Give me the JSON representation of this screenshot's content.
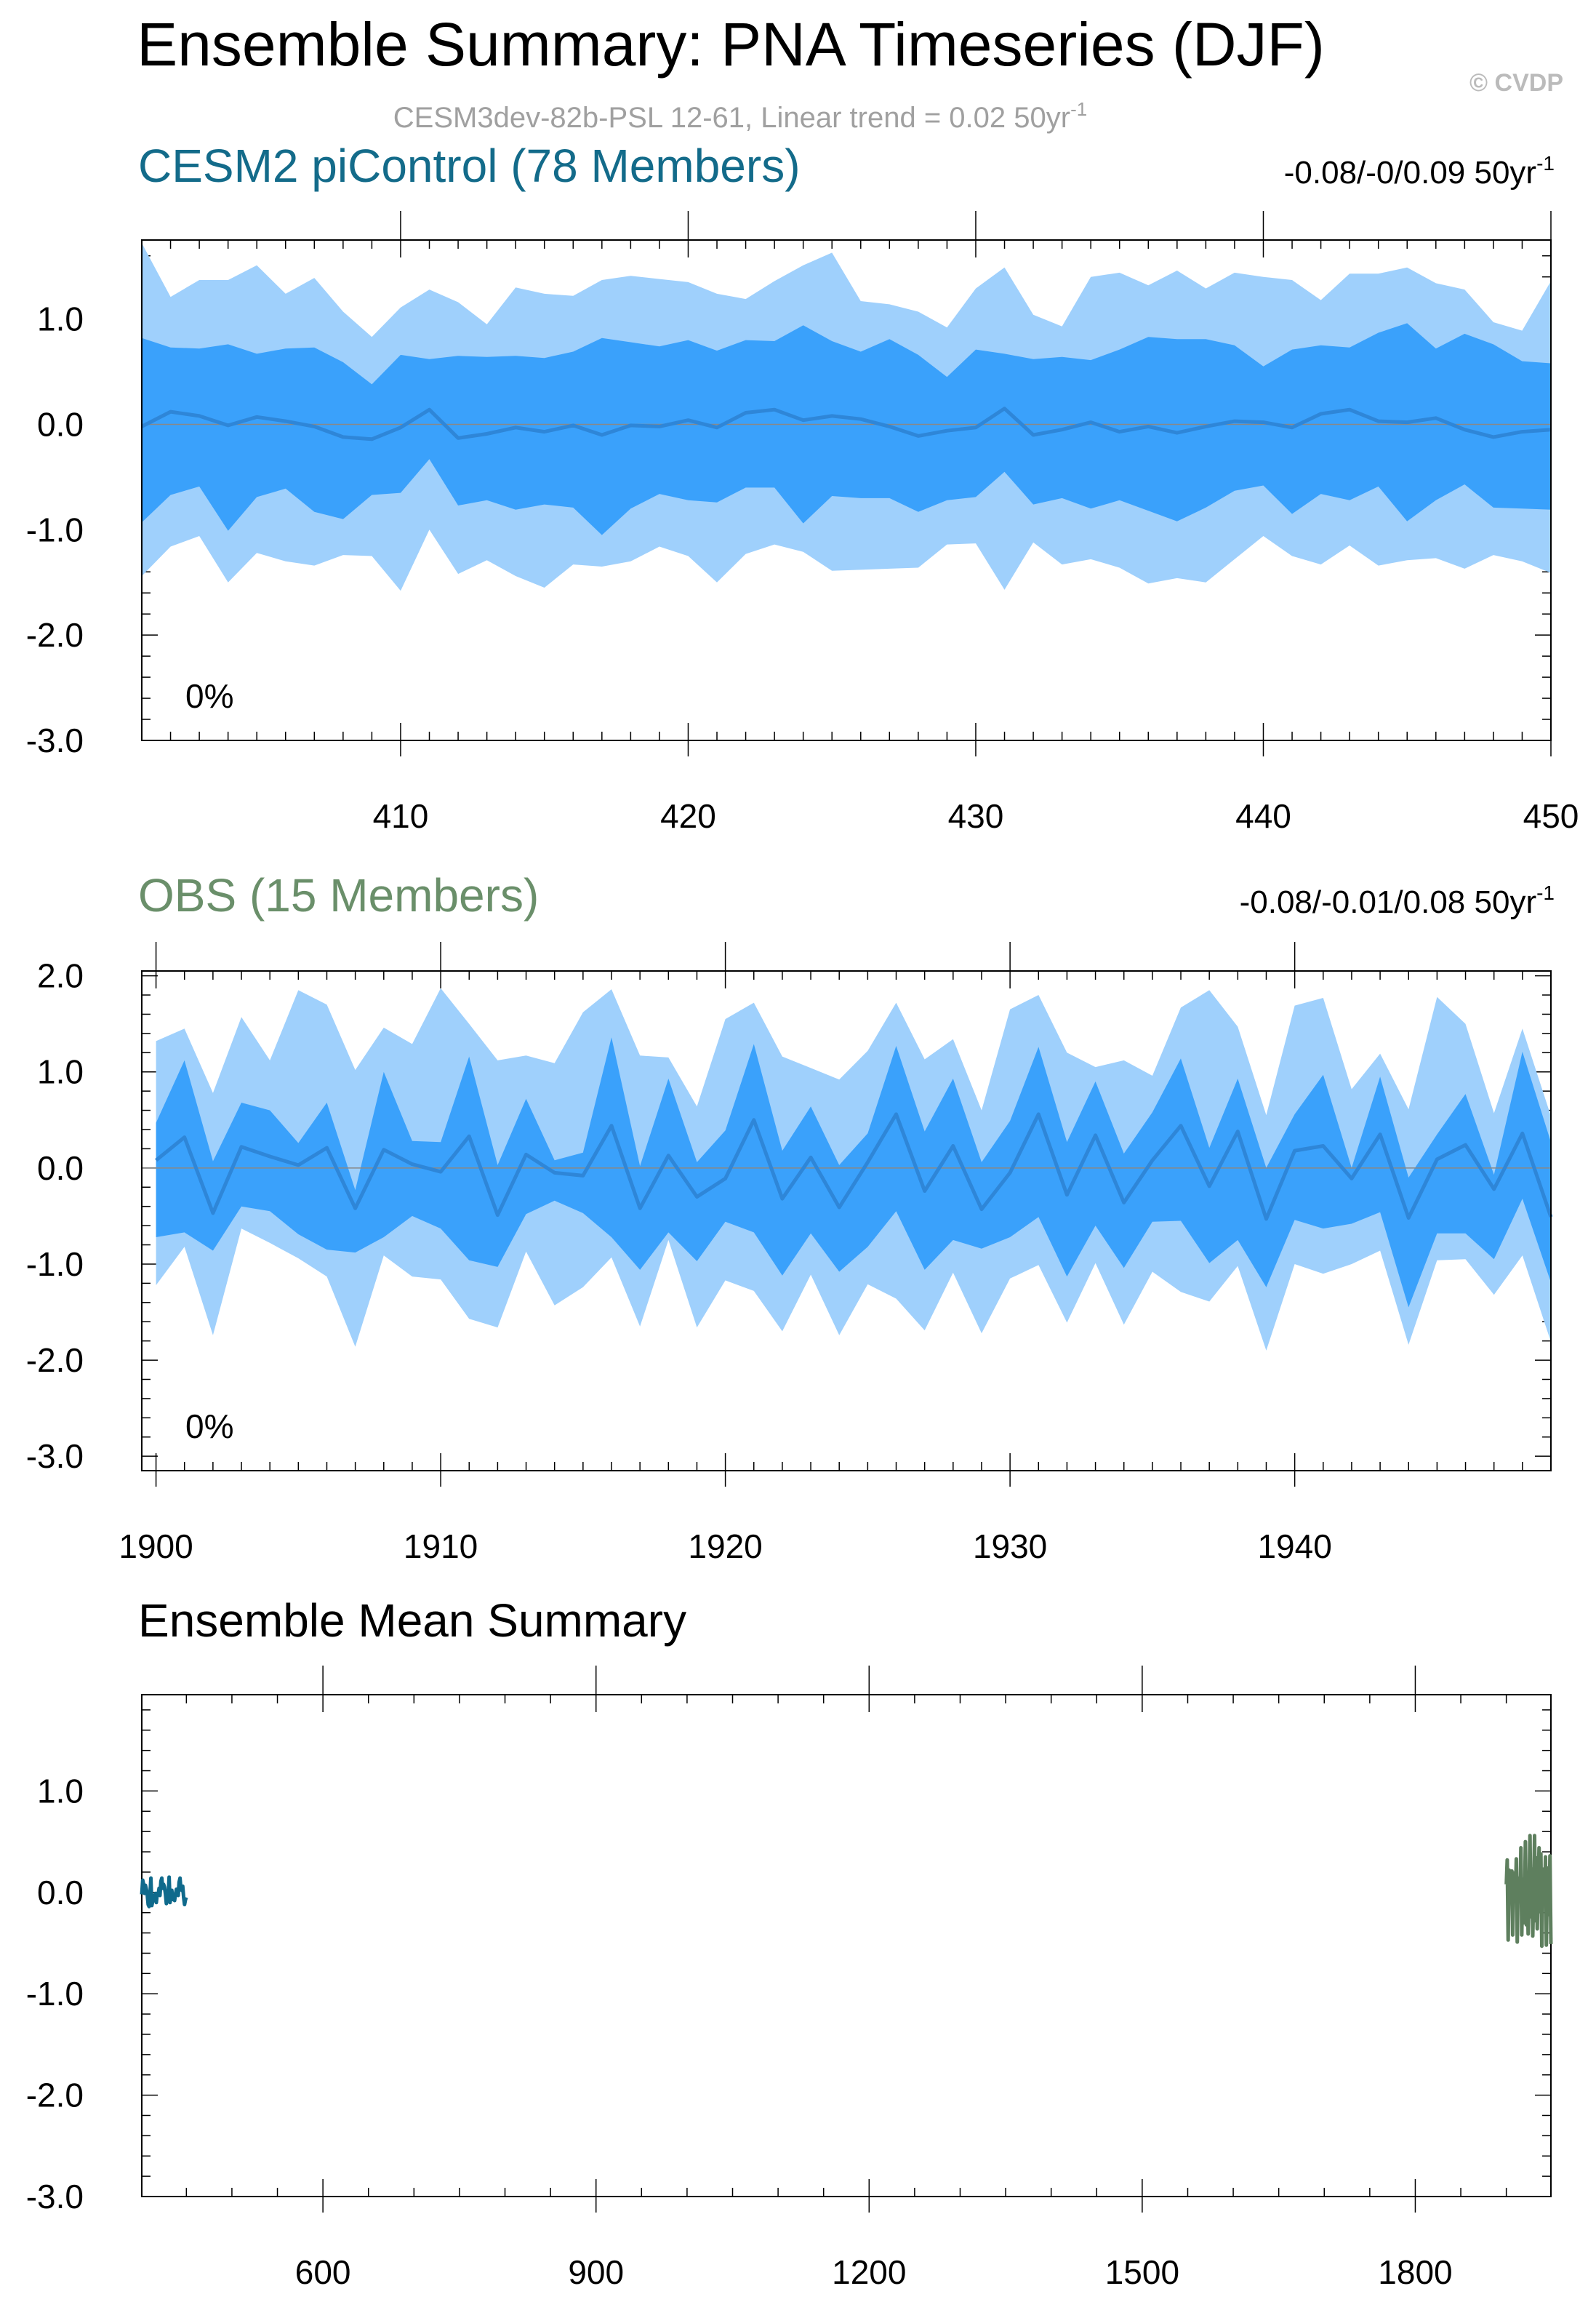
{
  "title": "Ensemble Summary: PNA Timeseries (DJF)",
  "watermark": "© CVDP",
  "subtitle": "CESM3dev-82b-PSL 12-61, Linear trend = 0.02 50yr",
  "subtitle_superscript": "-1",
  "colors": {
    "outer_band": "#9fd0fc",
    "inner_band": "#3aa1fb",
    "ensemble_mean_line": "#2e86d8",
    "zero_line": "#888888",
    "model_title": "#136b8a",
    "obs_title": "#6a8f6a",
    "model_mean": "#0f6a8c",
    "obs_mean": "#5e7f5e",
    "subtitle": "#a0a0a0",
    "watermark": "#bbbbbb"
  },
  "chart_data": [
    {
      "type": "area",
      "title": "CESM2 piControl (78 Members)",
      "trend_label": "-0.08/-0/0.09 50yr",
      "trend_superscript": "-1",
      "percent_label": "0%",
      "xlim": [
        401,
        450
      ],
      "ylim": [
        -3.0,
        1.75
      ],
      "x_ticks": [
        410,
        420,
        430,
        440,
        450
      ],
      "x_tick_labels": [
        "410",
        "420",
        "430",
        "440",
        "450"
      ],
      "y_ticks": [
        1.0,
        0.0,
        -1.0,
        -2.0,
        -3.0
      ],
      "y_tick_labels": [
        "1.0",
        "0.0",
        "-1.0",
        "-2.0",
        "-3.0"
      ],
      "x": [
        401,
        402,
        403,
        404,
        405,
        406,
        407,
        408,
        409,
        410,
        411,
        412,
        413,
        414,
        415,
        416,
        417,
        418,
        419,
        420,
        421,
        422,
        423,
        424,
        425,
        426,
        427,
        428,
        429,
        430,
        431,
        432,
        433,
        434,
        435,
        436,
        437,
        438,
        439,
        440,
        441,
        442,
        443,
        444,
        445,
        446,
        447,
        448,
        449,
        450
      ],
      "series": [
        {
          "role": "outer_upper",
          "values": [
            1.72,
            1.21,
            1.37,
            1.37,
            1.51,
            1.24,
            1.39,
            1.07,
            0.83,
            1.11,
            1.28,
            1.16,
            0.95,
            1.3,
            1.24,
            1.22,
            1.37,
            1.41,
            1.38,
            1.35,
            1.24,
            1.19,
            1.36,
            1.51,
            1.63,
            1.17,
            1.14,
            1.07,
            0.92,
            1.29,
            1.49,
            1.04,
            0.93,
            1.4,
            1.44,
            1.32,
            1.46,
            1.29,
            1.44,
            1.4,
            1.37,
            1.18,
            1.43,
            1.43,
            1.49,
            1.34,
            1.28,
            0.97,
            0.89,
            1.36
          ]
        },
        {
          "role": "inner_upper",
          "values": [
            0.82,
            0.73,
            0.72,
            0.76,
            0.67,
            0.72,
            0.73,
            0.59,
            0.38,
            0.66,
            0.62,
            0.65,
            0.64,
            0.65,
            0.63,
            0.69,
            0.82,
            0.78,
            0.74,
            0.8,
            0.7,
            0.8,
            0.79,
            0.94,
            0.79,
            0.69,
            0.81,
            0.66,
            0.45,
            0.71,
            0.67,
            0.62,
            0.64,
            0.61,
            0.71,
            0.83,
            0.81,
            0.81,
            0.75,
            0.55,
            0.71,
            0.75,
            0.73,
            0.87,
            0.96,
            0.72,
            0.86,
            0.76,
            0.6,
            0.58
          ]
        },
        {
          "role": "mean",
          "values": [
            -0.02,
            0.12,
            0.08,
            -0.01,
            0.07,
            0.03,
            -0.02,
            -0.12,
            -0.14,
            -0.03,
            0.14,
            -0.13,
            -0.09,
            -0.03,
            -0.07,
            -0.01,
            -0.1,
            -0.01,
            -0.02,
            0.04,
            -0.03,
            0.11,
            0.14,
            0.04,
            0.08,
            0.05,
            -0.02,
            -0.11,
            -0.06,
            -0.03,
            0.15,
            -0.1,
            -0.05,
            0.02,
            -0.07,
            -0.02,
            -0.08,
            -0.02,
            0.03,
            0.02,
            -0.03,
            0.1,
            0.14,
            0.03,
            0.02,
            0.06,
            -0.05,
            -0.12,
            -0.07,
            -0.05
          ]
        },
        {
          "role": "inner_lower",
          "values": [
            -0.93,
            -0.67,
            -0.59,
            -1.01,
            -0.69,
            -0.61,
            -0.83,
            -0.9,
            -0.67,
            -0.65,
            -0.33,
            -0.77,
            -0.72,
            -0.81,
            -0.76,
            -0.79,
            -1.05,
            -0.8,
            -0.66,
            -0.72,
            -0.74,
            -0.6,
            -0.6,
            -0.94,
            -0.68,
            -0.7,
            -0.7,
            -0.83,
            -0.72,
            -0.69,
            -0.45,
            -0.76,
            -0.7,
            -0.8,
            -0.72,
            -0.82,
            -0.92,
            -0.79,
            -0.63,
            -0.58,
            -0.85,
            -0.66,
            -0.72,
            -0.59,
            -0.92,
            -0.72,
            -0.57,
            -0.79,
            -0.8,
            -0.81
          ]
        },
        {
          "role": "outer_lower",
          "values": [
            -1.44,
            -1.16,
            -1.06,
            -1.5,
            -1.22,
            -1.3,
            -1.34,
            -1.24,
            -1.25,
            -1.58,
            -1.0,
            -1.42,
            -1.29,
            -1.44,
            -1.55,
            -1.33,
            -1.35,
            -1.3,
            -1.16,
            -1.25,
            -1.5,
            -1.23,
            -1.14,
            -1.21,
            -1.39,
            -1.38,
            -1.37,
            -1.36,
            -1.14,
            -1.13,
            -1.57,
            -1.12,
            -1.33,
            -1.28,
            -1.36,
            -1.51,
            -1.46,
            -1.5,
            -1.28,
            -1.06,
            -1.25,
            -1.33,
            -1.15,
            -1.34,
            -1.29,
            -1.27,
            -1.37,
            -1.24,
            -1.3,
            -1.41
          ]
        }
      ]
    },
    {
      "type": "area",
      "title": "OBS (15 Members)",
      "trend_label": "-0.08/-0.01/0.08 50yr",
      "trend_superscript": "-1",
      "percent_label": "0%",
      "xlim": [
        1899.5,
        1949
      ],
      "ylim": [
        -3.15,
        2.05
      ],
      "x_ticks": [
        1900,
        1910,
        1920,
        1930,
        1940
      ],
      "x_tick_labels": [
        "1900",
        "1910",
        "1920",
        "1930",
        "1940"
      ],
      "y_ticks": [
        2.0,
        1.0,
        0.0,
        -1.0,
        -2.0,
        -3.0
      ],
      "y_tick_labels": [
        "2.0",
        "1.0",
        "0.0",
        "-1.0",
        "-2.0",
        "-3.0"
      ],
      "x": [
        1900,
        1901,
        1902,
        1903,
        1904,
        1905,
        1906,
        1907,
        1908,
        1909,
        1910,
        1911,
        1912,
        1913,
        1914,
        1915,
        1916,
        1917,
        1918,
        1919,
        1920,
        1921,
        1922,
        1923,
        1924,
        1925,
        1926,
        1927,
        1928,
        1929,
        1930,
        1931,
        1932,
        1933,
        1934,
        1935,
        1936,
        1937,
        1938,
        1939,
        1940,
        1941,
        1942,
        1943,
        1944,
        1945,
        1946,
        1947,
        1948,
        1949
      ],
      "series": [
        {
          "role": "outer_upper",
          "values": [
            1.32,
            1.45,
            0.78,
            1.57,
            1.12,
            1.85,
            1.7,
            1.02,
            1.46,
            1.29,
            1.87,
            1.5,
            1.12,
            1.17,
            1.09,
            1.62,
            1.86,
            1.17,
            1.15,
            0.64,
            1.55,
            1.72,
            1.16,
            1.04,
            0.92,
            1.22,
            1.72,
            1.13,
            1.34,
            0.6,
            1.65,
            1.8,
            1.2,
            1.05,
            1.12,
            0.96,
            1.67,
            1.85,
            1.47,
            0.55,
            1.69,
            1.77,
            0.82,
            1.19,
            0.61,
            1.78,
            1.5,
            0.57,
            1.45,
            0.54
          ]
        },
        {
          "role": "inner_upper",
          "values": [
            0.47,
            1.12,
            0.07,
            0.68,
            0.6,
            0.26,
            0.68,
            -0.23,
            1.0,
            0.28,
            0.27,
            1.16,
            0.03,
            0.72,
            0.08,
            0.16,
            1.36,
            0.02,
            0.93,
            0.06,
            0.39,
            1.29,
            0.18,
            0.64,
            0.03,
            0.36,
            1.27,
            0.38,
            0.93,
            0.06,
            0.49,
            1.26,
            0.27,
            0.9,
            0.15,
            0.58,
            1.14,
            0.21,
            0.93,
            0.0,
            0.56,
            0.97,
            0.0,
            0.95,
            -0.1,
            0.35,
            0.77,
            -0.07,
            1.21,
            0.27
          ]
        },
        {
          "role": "mean",
          "values": [
            0.08,
            0.32,
            -0.47,
            0.22,
            0.12,
            0.03,
            0.21,
            -0.42,
            0.19,
            0.04,
            -0.04,
            0.33,
            -0.49,
            0.14,
            -0.05,
            -0.08,
            0.44,
            -0.42,
            0.13,
            -0.3,
            -0.11,
            0.5,
            -0.32,
            0.11,
            -0.41,
            0.06,
            0.56,
            -0.24,
            0.23,
            -0.43,
            -0.05,
            0.56,
            -0.28,
            0.34,
            -0.36,
            0.08,
            0.44,
            -0.19,
            0.38,
            -0.53,
            0.18,
            0.23,
            -0.11,
            0.35,
            -0.52,
            0.09,
            0.24,
            -0.22,
            0.36,
            -0.51
          ]
        },
        {
          "role": "inner_lower",
          "values": [
            -0.72,
            -0.67,
            -0.86,
            -0.4,
            -0.45,
            -0.69,
            -0.85,
            -0.88,
            -0.72,
            -0.5,
            -0.63,
            -0.96,
            -1.03,
            -0.48,
            -0.34,
            -0.47,
            -0.72,
            -1.06,
            -0.67,
            -0.97,
            -0.56,
            -0.67,
            -1.12,
            -0.68,
            -1.08,
            -0.82,
            -0.45,
            -1.06,
            -0.75,
            -0.84,
            -0.72,
            -0.51,
            -1.13,
            -0.6,
            -1.04,
            -0.56,
            -0.55,
            -0.99,
            -0.75,
            -1.24,
            -0.54,
            -0.63,
            -0.58,
            -0.46,
            -1.45,
            -0.68,
            -0.68,
            -0.95,
            -0.32,
            -1.19
          ]
        },
        {
          "role": "outer_lower",
          "values": [
            -1.22,
            -0.82,
            -1.74,
            -0.63,
            -0.78,
            -0.94,
            -1.13,
            -1.86,
            -0.91,
            -1.13,
            -1.16,
            -1.57,
            -1.66,
            -0.87,
            -1.43,
            -1.24,
            -0.93,
            -1.65,
            -0.75,
            -1.66,
            -1.17,
            -1.28,
            -1.7,
            -1.11,
            -1.74,
            -1.21,
            -1.36,
            -1.69,
            -1.09,
            -1.72,
            -1.15,
            -1.01,
            -1.61,
            -0.99,
            -1.63,
            -1.08,
            -1.29,
            -1.39,
            -1.02,
            -1.9,
            -1.0,
            -1.1,
            -1.0,
            -0.86,
            -1.84,
            -0.96,
            -0.95,
            -1.32,
            -0.91,
            -1.81
          ]
        }
      ]
    },
    {
      "type": "line",
      "title": "Ensemble Mean Summary",
      "xlim": [
        401,
        1949
      ],
      "ylim": [
        -3.0,
        1.95
      ],
      "x_ticks": [
        600,
        900,
        1200,
        1500,
        1800
      ],
      "x_tick_labels": [
        "600",
        "900",
        "1200",
        "1500",
        "1800"
      ],
      "y_ticks": [
        1.0,
        0.0,
        -1.0,
        -2.0,
        -3.0
      ],
      "y_tick_labels": [
        "1.0",
        "0.0",
        "-1.0",
        "-2.0",
        "-3.0"
      ],
      "series_refs": [
        {
          "source": 0,
          "color_key": "model_mean"
        },
        {
          "source": 1,
          "color_key": "obs_mean"
        }
      ]
    }
  ]
}
